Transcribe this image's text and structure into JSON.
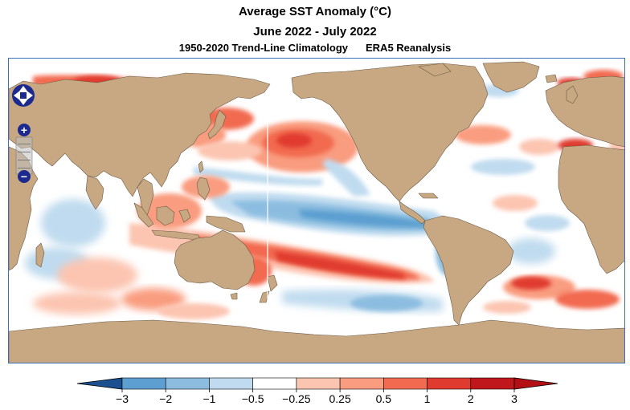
{
  "title": {
    "line1": "Average SST Anomaly (°C)",
    "line2": "June 2022 - July 2022",
    "line3a": "1950-2020 Trend-Line Climatology",
    "line3b": "ERA5 Reanalysis"
  },
  "map": {
    "projection": "Pacific-centered equirectangular",
    "colors": {
      "land": "#c8a882",
      "ocean_neutral": "#ffffff",
      "frame": "#3b6fb5",
      "nav_button": "#1c2a8f"
    },
    "controls": {
      "pan_up": "pan-up",
      "pan_down": "pan-down",
      "pan_left": "pan-left",
      "pan_right": "pan-right",
      "zoom_in": "+",
      "zoom_out": "−"
    }
  },
  "colorbar": {
    "labels": [
      "−3",
      "−2",
      "−1",
      "−0.5",
      "−0.25",
      "0.25",
      "0.5",
      "1",
      "2",
      "3"
    ],
    "colors": [
      "#2c7bb6",
      "#5c9fd0",
      "#8cbde0",
      "#c0dbef",
      "#ffffff",
      "#fcc5b1",
      "#f99c7f",
      "#f26a50",
      "#e03b2f",
      "#c0171d",
      "#8b0f12"
    ],
    "low_end_color": "#1b4f8f",
    "high_end_color": "#b30f15"
  }
}
